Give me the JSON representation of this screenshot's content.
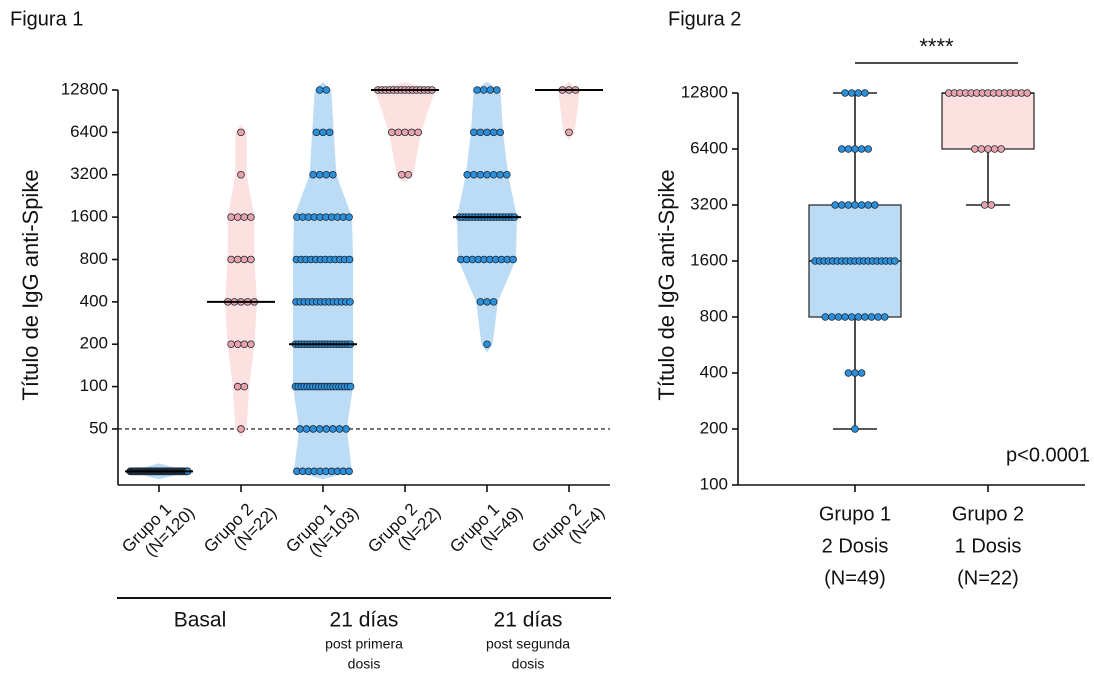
{
  "chart_data": [
    {
      "type": "violin",
      "title": "Figura 1",
      "y_label": "Título de IgG anti-Spike",
      "log_base": 2,
      "ylim": [
        20,
        12800
      ],
      "yticks": [
        50,
        100,
        200,
        400,
        800,
        1600,
        3200,
        6400,
        12800
      ],
      "reference_line": 50,
      "groups": [
        {
          "label": "Basal",
          "sublabel": [],
          "items": [
            {
              "name": [
                "Grupo 1",
                "(N=120)"
              ],
              "fill": "#bcdcf6",
              "point_color": "#2b8fd9",
              "levels": [
                25
              ],
              "counts": [
                120
              ],
              "median": 25
            },
            {
              "name": [
                "Grupo 2",
                "(N=22)"
              ],
              "fill": "#fde0e0",
              "point_color": "#eaa3a8",
              "levels": [
                6400,
                3200,
                1600,
                800,
                400,
                200,
                100,
                50
              ],
              "counts": [
                1,
                1,
                4,
                4,
                5,
                4,
                2,
                1
              ],
              "median": 400
            }
          ]
        },
        {
          "label": "21 días",
          "sublabel": [
            "post primera",
            "dosis"
          ],
          "items": [
            {
              "name": [
                "Grupo 1",
                "(N=103)"
              ],
              "fill": "#bcdcf6",
              "point_color": "#2b8fd9",
              "levels": [
                12800,
                6400,
                3200,
                1600,
                800,
                400,
                200,
                100,
                50,
                25
              ],
              "counts": [
                2,
                3,
                4,
                10,
                12,
                14,
                20,
                20,
                8,
                10
              ],
              "median": 200
            },
            {
              "name": [
                "Grupo 2",
                "(N=22)"
              ],
              "fill": "#fde0e0",
              "point_color": "#eaa3a8",
              "levels": [
                12800,
                6400,
                3200
              ],
              "counts": [
                15,
                5,
                2
              ],
              "median": 12800
            }
          ]
        },
        {
          "label": "21 días",
          "sublabel": [
            "post segunda",
            "dosis"
          ],
          "items": [
            {
              "name": [
                "Grupo 1",
                "(N=49)"
              ],
              "fill": "#bcdcf6",
              "point_color": "#2b8fd9",
              "levels": [
                12800,
                6400,
                3200,
                1600,
                800,
                400,
                200
              ],
              "counts": [
                4,
                5,
                7,
                19,
                10,
                3,
                1
              ],
              "median": 1600
            },
            {
              "name": [
                "Grupo 2",
                "(N=4)"
              ],
              "fill": "#fde0e0",
              "point_color": "#eaa3a8",
              "levels": [
                12800,
                6400
              ],
              "counts": [
                3,
                1
              ],
              "median": 12800
            }
          ]
        }
      ]
    },
    {
      "type": "box",
      "title": "Figura 2",
      "y_label": "Título de IgG anti-Spike",
      "log_base": 2,
      "ylim": [
        100,
        12800
      ],
      "yticks": [
        100,
        200,
        400,
        800,
        1600,
        3200,
        6400,
        12800
      ],
      "significance": "****",
      "annotation": "p<0.0001",
      "items": [
        {
          "name": [
            "Grupo 1",
            "2 Dosis",
            "(N=49)"
          ],
          "fill": "#bcdcf6",
          "point_color": "#2b8fd9",
          "min": 200,
          "q1": 800,
          "median": 1600,
          "q3": 3200,
          "max": 12800,
          "levels": [
            12800,
            6400,
            3200,
            1600,
            800,
            400,
            200
          ],
          "counts": [
            4,
            5,
            7,
            19,
            10,
            3,
            1
          ]
        },
        {
          "name": [
            "Grupo 2",
            "1 Dosis",
            "(N=22)"
          ],
          "fill": "#fde0e0",
          "point_color": "#eaa3a8",
          "min": 3200,
          "q1": 6400,
          "median": 12800,
          "q3": 12800,
          "max": 12800,
          "levels": [
            12800,
            6400,
            3200
          ],
          "counts": [
            15,
            5,
            2
          ]
        }
      ]
    }
  ]
}
